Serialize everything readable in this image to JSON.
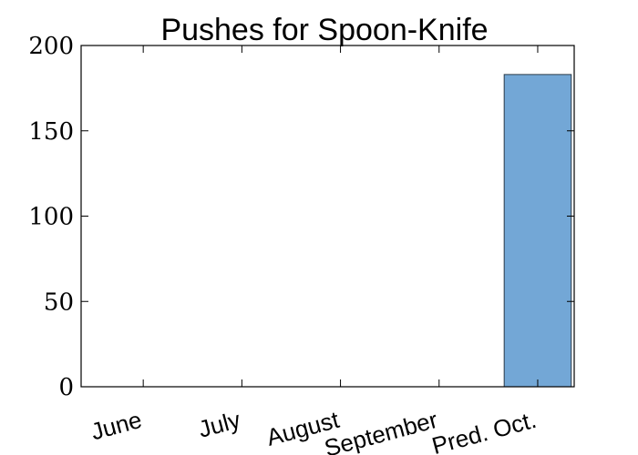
{
  "chart_data": {
    "type": "bar",
    "title": "Pushes for Spoon-Knife",
    "categories": [
      "June",
      "July",
      "August",
      "September",
      "Pred. Oct."
    ],
    "values": [
      0,
      0,
      0,
      0,
      183
    ],
    "ylim": [
      0,
      200
    ],
    "yticks": [
      0,
      50,
      100,
      150,
      200
    ],
    "xlabel": "",
    "ylabel": "",
    "bar_color": "#73a7d6",
    "bar_edge_color": "#2b3a48",
    "grid": false,
    "legend": "none"
  }
}
